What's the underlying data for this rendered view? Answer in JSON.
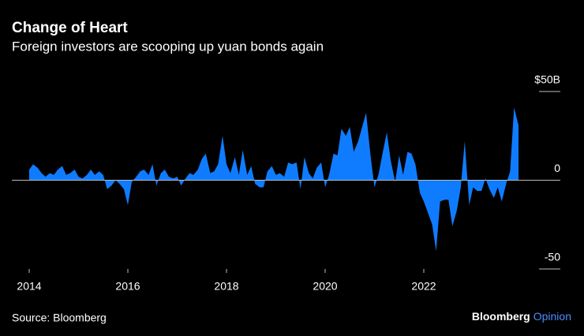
{
  "chart_data": {
    "type": "area",
    "title": "Change of Heart",
    "subtitle": "Foreign investors are scooping up yuan bonds again",
    "source": "Source: Bloomberg",
    "brand": [
      "Bloomberg",
      "Opinion"
    ],
    "color": "#0f7cff",
    "ylim": [
      -50,
      50
    ],
    "yticks": [
      {
        "value": 50,
        "label": "$50B"
      },
      0,
      -50
    ],
    "xlim": [
      2014,
      2024
    ],
    "xticks": [
      2014,
      2016,
      2018,
      2020,
      2022
    ],
    "x": [
      2014,
      2014.08,
      2014.17,
      2014.25,
      2014.33,
      2014.42,
      2014.5,
      2014.58,
      2014.67,
      2014.75,
      2014.83,
      2014.92,
      2015,
      2015.08,
      2015.17,
      2015.25,
      2015.33,
      2015.42,
      2015.5,
      2015.58,
      2015.67,
      2015.75,
      2015.83,
      2015.92,
      2016,
      2016.08,
      2016.17,
      2016.25,
      2016.33,
      2016.42,
      2016.5,
      2016.58,
      2016.67,
      2016.75,
      2016.83,
      2016.92,
      2017,
      2017.08,
      2017.17,
      2017.25,
      2017.33,
      2017.42,
      2017.5,
      2017.58,
      2017.67,
      2017.75,
      2017.83,
      2017.92,
      2018,
      2018.08,
      2018.17,
      2018.25,
      2018.33,
      2018.42,
      2018.5,
      2018.58,
      2018.67,
      2018.75,
      2018.83,
      2018.92,
      2019,
      2019.08,
      2019.17,
      2019.25,
      2019.33,
      2019.42,
      2019.5,
      2019.58,
      2019.67,
      2019.75,
      2019.83,
      2019.92,
      2020,
      2020.08,
      2020.17,
      2020.25,
      2020.33,
      2020.42,
      2020.5,
      2020.58,
      2020.67,
      2020.75,
      2020.83,
      2020.92,
      2021,
      2021.08,
      2021.17,
      2021.25,
      2021.33,
      2021.42,
      2021.5,
      2021.58,
      2021.67,
      2021.75,
      2021.83,
      2021.92,
      2022,
      2022.08,
      2022.17,
      2022.25,
      2022.33,
      2022.42,
      2022.5,
      2022.58,
      2022.67,
      2022.75,
      2022.83,
      2022.92,
      2023,
      2023.08,
      2023.17,
      2023.25,
      2023.33,
      2023.42,
      2023.5,
      2023.58,
      2023.67,
      2023.75,
      2023.83,
      2023.92
    ],
    "values": [
      6,
      9,
      7,
      4,
      2,
      4,
      3,
      6,
      8,
      3,
      4,
      6,
      2,
      1,
      3,
      6,
      3,
      5,
      3,
      -5,
      -3,
      0,
      -2,
      -5,
      -14,
      -1,
      2,
      5,
      6,
      3,
      9,
      -3,
      4,
      6,
      2,
      1,
      2,
      -3,
      1,
      4,
      3,
      6,
      12,
      15,
      4,
      5,
      9,
      25,
      9,
      4,
      13,
      3,
      17,
      3,
      8,
      -2,
      -4,
      -4,
      5,
      8,
      3,
      4,
      2,
      10,
      9,
      10,
      -5,
      13,
      4,
      1,
      7,
      10,
      -4,
      3,
      15,
      14,
      29,
      25,
      30,
      16,
      22,
      30,
      38,
      14,
      -4,
      3,
      16,
      27,
      11,
      -1,
      14,
      3,
      16,
      15,
      9,
      -7,
      -12,
      -18,
      -25,
      -40,
      -12,
      -11,
      -11,
      -26,
      -17,
      -4,
      22,
      -14,
      -4,
      -6,
      -6,
      1,
      -5,
      -10,
      -4,
      -12,
      -2,
      5,
      41,
      31
    ]
  }
}
